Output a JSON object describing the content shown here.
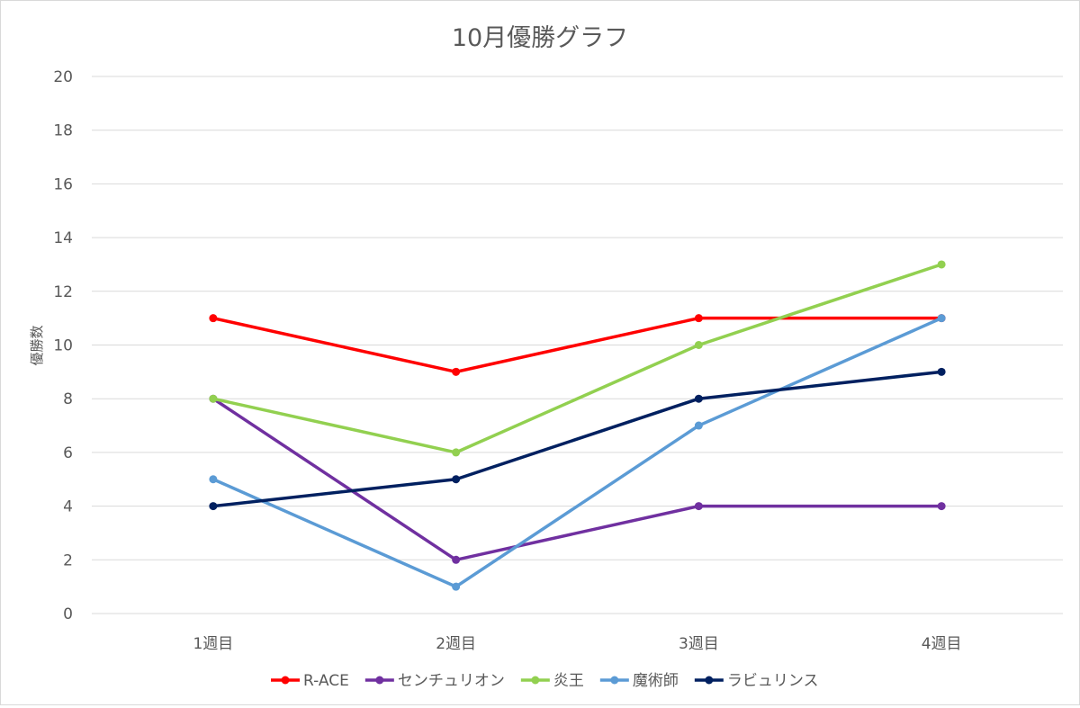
{
  "chart_data": {
    "type": "line",
    "title": "10月優勝グラフ",
    "xlabel": "",
    "ylabel": "優勝数",
    "ylim": [
      0,
      20
    ],
    "yticks": [
      0,
      2,
      4,
      6,
      8,
      10,
      12,
      14,
      16,
      18,
      20
    ],
    "categories": [
      "1週目",
      "2週目",
      "3週目",
      "4週目"
    ],
    "grid": true,
    "legend_position": "bottom",
    "series": [
      {
        "name": "R-ACE",
        "color": "#ff0000",
        "values": [
          11,
          9,
          11,
          11
        ]
      },
      {
        "name": "センチュリオン",
        "color": "#7030a0",
        "values": [
          8,
          2,
          4,
          4
        ]
      },
      {
        "name": "炎王",
        "color": "#92d050",
        "values": [
          8,
          6,
          10,
          13
        ]
      },
      {
        "name": "魔術師",
        "color": "#5b9bd5",
        "values": [
          5,
          1,
          7,
          11
        ]
      },
      {
        "name": "ラビュリンス",
        "color": "#002060",
        "values": [
          4,
          5,
          8,
          9
        ]
      }
    ]
  }
}
